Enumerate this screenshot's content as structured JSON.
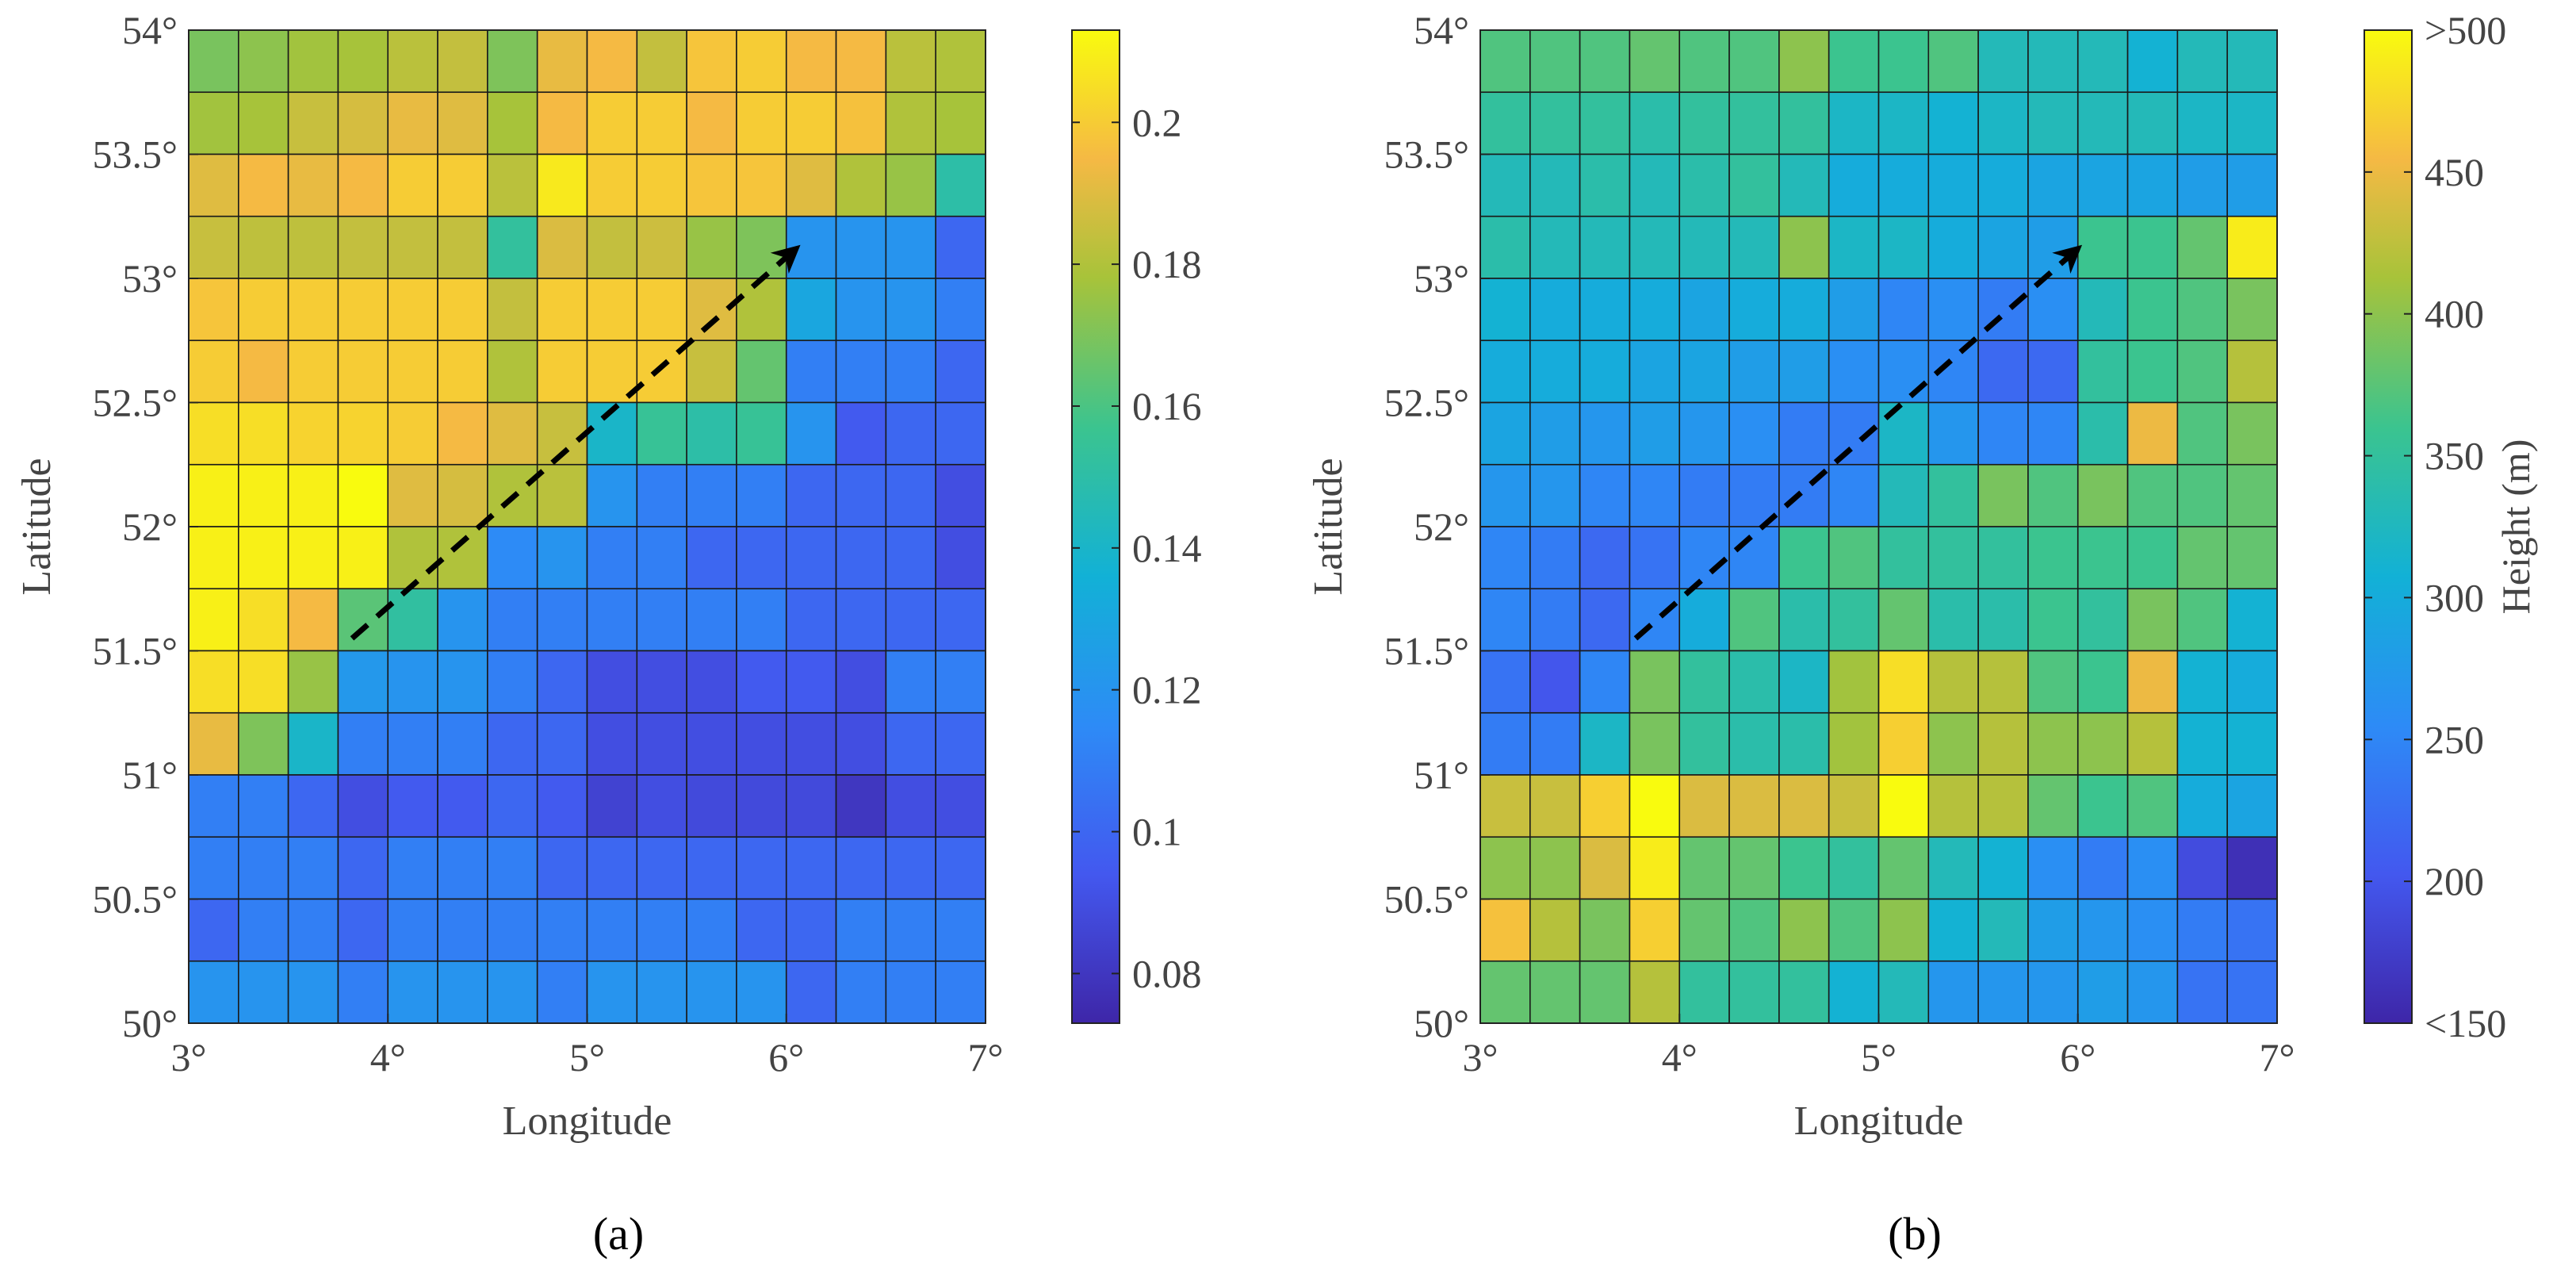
{
  "chart_data": [
    {
      "type": "heatmap",
      "panel_label": "(a)",
      "xlabel": "Longitude",
      "ylabel": "Latitude",
      "xlim": [
        3,
        7
      ],
      "ylim": [
        50,
        54
      ],
      "x_ticks": [
        "3°",
        "4°",
        "5°",
        "6°",
        "7°"
      ],
      "y_ticks": [
        "50°",
        "50.5°",
        "51°",
        "51.5°",
        "52°",
        "52.5°",
        "53°",
        "53.5°",
        "54°"
      ],
      "grid_step_deg": 0.25,
      "colorbar": {
        "min": 0.073,
        "max": 0.213,
        "ticks": [
          "0.08",
          "0.1",
          "0.12",
          "0.14",
          "0.16",
          "0.18",
          "0.2"
        ],
        "label": ""
      },
      "rows_top_to_bottom": [
        [
          0.169,
          0.173,
          0.177,
          0.178,
          0.182,
          0.184,
          0.17,
          0.192,
          0.195,
          0.184,
          0.198,
          0.2,
          0.195,
          0.195,
          0.182,
          0.18
        ],
        [
          0.177,
          0.178,
          0.185,
          0.188,
          0.192,
          0.19,
          0.178,
          0.195,
          0.2,
          0.2,
          0.195,
          0.2,
          0.2,
          0.197,
          0.18,
          0.178
        ],
        [
          0.19,
          0.195,
          0.192,
          0.195,
          0.2,
          0.2,
          0.182,
          0.208,
          0.2,
          0.2,
          0.198,
          0.198,
          0.19,
          0.18,
          0.175,
          0.15
        ],
        [
          0.185,
          0.183,
          0.183,
          0.184,
          0.184,
          0.184,
          0.153,
          0.189,
          0.184,
          0.186,
          0.175,
          0.17,
          0.12,
          0.12,
          0.12,
          0.1
        ],
        [
          0.198,
          0.2,
          0.2,
          0.2,
          0.2,
          0.2,
          0.184,
          0.2,
          0.2,
          0.2,
          0.19,
          0.18,
          0.13,
          0.12,
          0.12,
          0.11
        ],
        [
          0.2,
          0.195,
          0.2,
          0.2,
          0.2,
          0.2,
          0.18,
          0.2,
          0.2,
          0.2,
          0.185,
          0.165,
          0.11,
          0.11,
          0.11,
          0.1
        ],
        [
          0.205,
          0.205,
          0.202,
          0.202,
          0.2,
          0.195,
          0.19,
          0.185,
          0.14,
          0.155,
          0.15,
          0.155,
          0.12,
          0.095,
          0.1,
          0.1
        ],
        [
          0.21,
          0.21,
          0.21,
          0.213,
          0.19,
          0.188,
          0.18,
          0.182,
          0.12,
          0.11,
          0.11,
          0.11,
          0.1,
          0.1,
          0.1,
          0.09
        ],
        [
          0.21,
          0.21,
          0.21,
          0.21,
          0.18,
          0.18,
          0.115,
          0.12,
          0.11,
          0.11,
          0.1,
          0.1,
          0.1,
          0.1,
          0.1,
          0.09
        ],
        [
          0.21,
          0.205,
          0.195,
          0.163,
          0.152,
          0.12,
          0.11,
          0.11,
          0.11,
          0.11,
          0.11,
          0.11,
          0.1,
          0.1,
          0.1,
          0.1
        ],
        [
          0.205,
          0.205,
          0.175,
          0.122,
          0.12,
          0.12,
          0.11,
          0.1,
          0.09,
          0.09,
          0.09,
          0.095,
          0.095,
          0.09,
          0.11,
          0.11
        ],
        [
          0.192,
          0.17,
          0.14,
          0.11,
          0.11,
          0.11,
          0.1,
          0.1,
          0.09,
          0.09,
          0.09,
          0.09,
          0.09,
          0.09,
          0.1,
          0.1
        ],
        [
          0.11,
          0.11,
          0.1,
          0.09,
          0.095,
          0.095,
          0.1,
          0.095,
          0.085,
          0.09,
          0.088,
          0.088,
          0.088,
          0.08,
          0.09,
          0.09
        ],
        [
          0.11,
          0.11,
          0.11,
          0.1,
          0.11,
          0.11,
          0.11,
          0.1,
          0.1,
          0.1,
          0.1,
          0.1,
          0.1,
          0.1,
          0.1,
          0.1
        ],
        [
          0.1,
          0.11,
          0.11,
          0.1,
          0.11,
          0.11,
          0.11,
          0.11,
          0.11,
          0.11,
          0.11,
          0.1,
          0.1,
          0.11,
          0.11,
          0.11
        ],
        [
          0.12,
          0.12,
          0.12,
          0.11,
          0.12,
          0.12,
          0.12,
          0.11,
          0.12,
          0.12,
          0.12,
          0.12,
          0.1,
          0.11,
          0.11,
          0.11
        ]
      ],
      "annotation": {
        "type": "dashed-arrow",
        "start": {
          "lon": 3.82,
          "lat": 51.55
        },
        "end": {
          "lon": 6.05,
          "lat": 53.12
        }
      }
    },
    {
      "type": "heatmap",
      "panel_label": "(b)",
      "xlabel": "Longitude",
      "ylabel": "Latitude",
      "xlim": [
        3,
        7
      ],
      "ylim": [
        50,
        54
      ],
      "x_ticks": [
        "3°",
        "4°",
        "5°",
        "6°",
        "7°"
      ],
      "y_ticks": [
        "50°",
        "50.5°",
        "51°",
        "51.5°",
        "52°",
        "52.5°",
        "53°",
        "53.5°",
        "54°"
      ],
      "grid_step_deg": 0.25,
      "colorbar": {
        "min": 150,
        "max": 500,
        "ticks": [
          "<150",
          "200",
          "250",
          "300",
          "350",
          "400",
          "450",
          ">500"
        ],
        "label": "Height (m)"
      },
      "rows_top_to_bottom": [
        [
          370,
          370,
          370,
          380,
          370,
          370,
          400,
          360,
          360,
          370,
          330,
          330,
          330,
          310,
          330,
          330
        ],
        [
          350,
          350,
          350,
          340,
          350,
          350,
          350,
          320,
          320,
          310,
          320,
          330,
          330,
          330,
          320,
          320
        ],
        [
          330,
          330,
          340,
          330,
          340,
          350,
          330,
          300,
          300,
          300,
          300,
          290,
          290,
          290,
          280,
          280
        ],
        [
          340,
          330,
          330,
          330,
          330,
          330,
          400,
          320,
          320,
          300,
          290,
          280,
          360,
          360,
          380,
          490
        ],
        [
          310,
          300,
          300,
          300,
          290,
          300,
          300,
          280,
          250,
          260,
          240,
          260,
          330,
          360,
          370,
          390
        ],
        [
          300,
          300,
          300,
          290,
          290,
          280,
          280,
          260,
          260,
          250,
          220,
          220,
          350,
          360,
          370,
          420
        ],
        [
          290,
          280,
          270,
          280,
          270,
          260,
          240,
          240,
          320,
          270,
          250,
          250,
          340,
          450,
          370,
          390
        ],
        [
          270,
          270,
          250,
          250,
          240,
          240,
          240,
          250,
          330,
          350,
          390,
          370,
          390,
          370,
          370,
          380
        ],
        [
          250,
          240,
          220,
          230,
          250,
          250,
          360,
          370,
          350,
          350,
          350,
          360,
          360,
          360,
          380,
          380
        ],
        [
          250,
          240,
          220,
          250,
          300,
          370,
          340,
          350,
          380,
          340,
          340,
          360,
          350,
          390,
          370,
          310
        ],
        [
          230,
          200,
          250,
          390,
          350,
          340,
          320,
          410,
          480,
          420,
          420,
          370,
          360,
          450,
          310,
          300
        ],
        [
          240,
          240,
          320,
          390,
          350,
          340,
          340,
          410,
          470,
          400,
          420,
          400,
          400,
          420,
          310,
          310
        ],
        [
          430,
          430,
          470,
          500,
          440,
          440,
          440,
          430,
          500,
          420,
          420,
          380,
          360,
          370,
          300,
          290
        ],
        [
          400,
          400,
          440,
          490,
          380,
          380,
          360,
          350,
          380,
          330,
          310,
          260,
          240,
          260,
          190,
          160
        ],
        [
          460,
          420,
          390,
          470,
          380,
          370,
          400,
          370,
          400,
          310,
          330,
          280,
          270,
          260,
          240,
          230
        ],
        [
          380,
          380,
          380,
          420,
          350,
          350,
          350,
          310,
          330,
          270,
          270,
          270,
          280,
          270,
          230,
          230
        ]
      ],
      "annotation": {
        "type": "dashed-arrow",
        "start": {
          "lon": 3.78,
          "lat": 51.55
        },
        "end": {
          "lon": 6.0,
          "lat": 53.12
        }
      }
    }
  ]
}
